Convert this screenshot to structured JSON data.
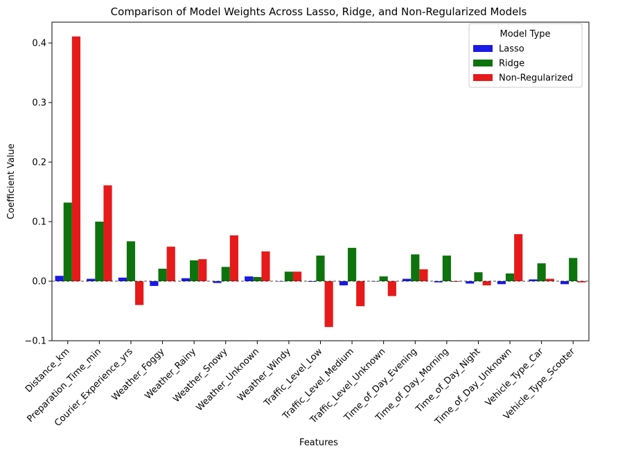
{
  "chart_data": {
    "type": "bar",
    "title": "Comparison of Model Weights Across Lasso, Ridge, and Non-Regularized Models",
    "xlabel": "Features",
    "ylabel": "Coefficient Value",
    "ylim": [
      -0.1,
      0.435
    ],
    "yticks": [
      -0.1,
      0.0,
      0.1,
      0.2,
      0.3,
      0.4
    ],
    "ytick_labels": [
      "−0.1",
      "0.0",
      "0.1",
      "0.2",
      "0.3",
      "0.4"
    ],
    "categories": [
      "Distance_km",
      "Preparation_Time_min",
      "Courier_Experience_yrs",
      "Weather_Foggy",
      "Weather_Rainy",
      "Weather_Snowy",
      "Weather_Unknown",
      "Weather_Windy",
      "Traffic_Level_Low",
      "Traffic_Level_Medium",
      "Traffic_Level_Unknown",
      "Time_of_Day_Evening",
      "Time_of_Day_Morning",
      "Time_of_Day_Night",
      "Time_of_Day_Unknown",
      "Vehicle_Type_Car",
      "Vehicle_Type_Scooter"
    ],
    "series": [
      {
        "name": "Lasso",
        "color": "#1a1ae6",
        "values": [
          0.009,
          0.004,
          0.006,
          -0.008,
          0.005,
          -0.003,
          0.008,
          0.0,
          -0.001,
          -0.007,
          0.0,
          0.004,
          -0.002,
          -0.004,
          -0.005,
          0.003,
          -0.005
        ]
      },
      {
        "name": "Ridge",
        "color": "#0d730d",
        "values": [
          0.132,
          0.1,
          0.067,
          0.021,
          0.035,
          0.024,
          0.007,
          0.016,
          0.043,
          0.056,
          0.008,
          0.045,
          0.043,
          0.015,
          0.013,
          0.03,
          0.039
        ]
      },
      {
        "name": "Non-Regularized",
        "color": "#e61a1a",
        "values": [
          0.411,
          0.161,
          -0.04,
          0.058,
          0.037,
          0.077,
          0.05,
          0.016,
          -0.077,
          -0.042,
          -0.025,
          0.02,
          -0.001,
          -0.007,
          0.079,
          0.004,
          -0.002
        ]
      }
    ],
    "legend": {
      "title": "Model Type",
      "placement": "top-right"
    },
    "grid": false,
    "zero_line": "dashed"
  }
}
